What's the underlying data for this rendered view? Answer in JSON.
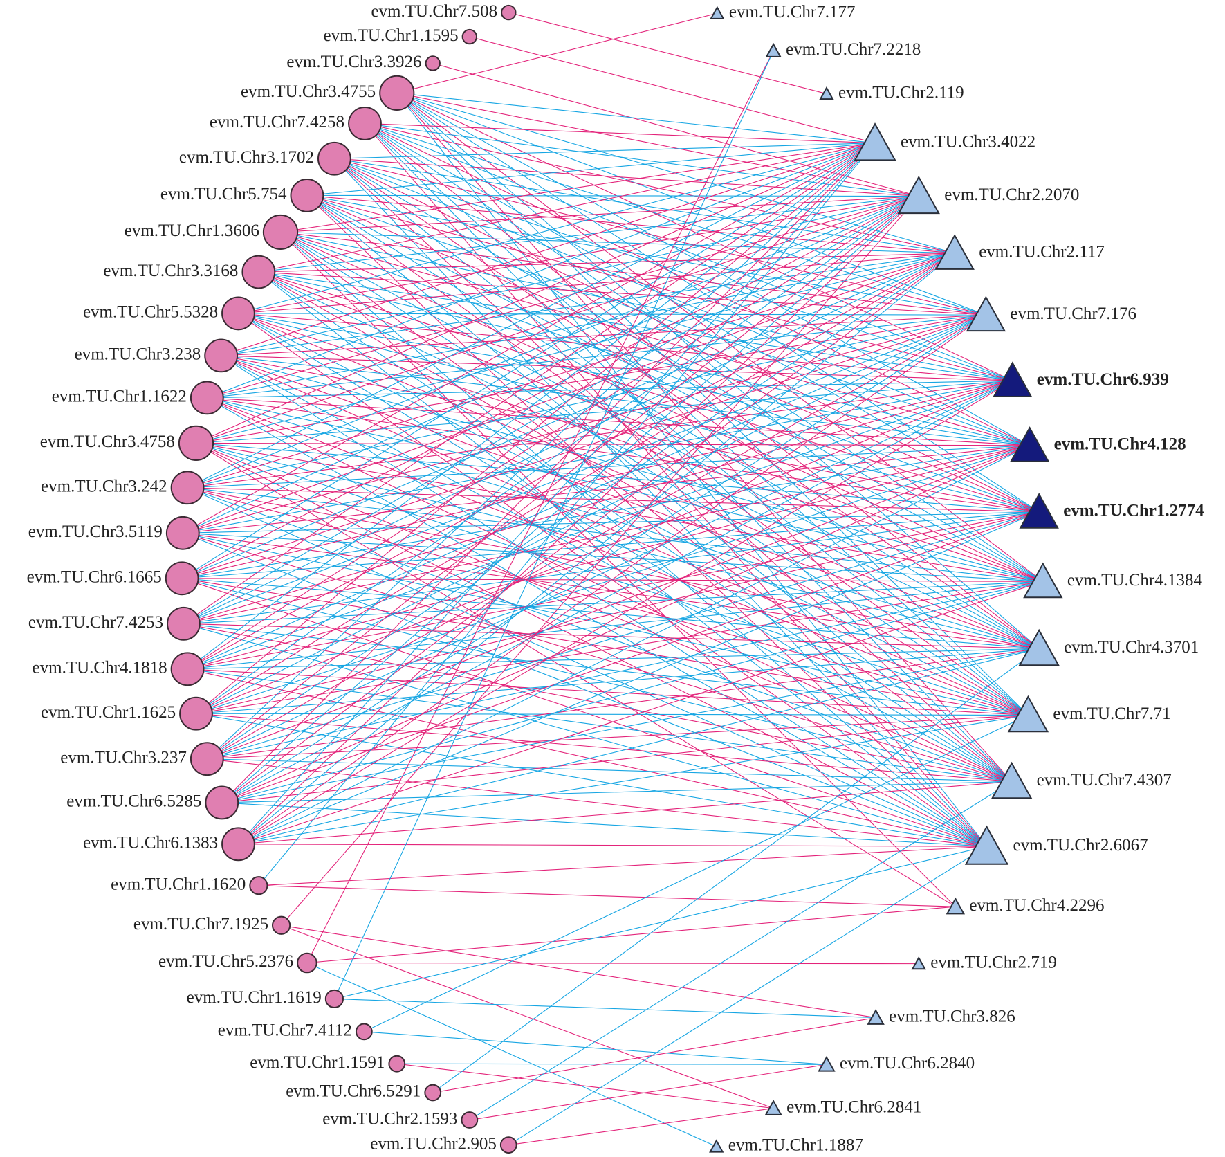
{
  "left_nodes": [
    "evm.TU.Chr7.508",
    "evm.TU.Chr1.1595",
    "evm.TU.Chr3.3926",
    "evm.TU.Chr3.4755",
    "evm.TU.Chr7.4258",
    "evm.TU.Chr3.1702",
    "evm.TU.Chr5.754",
    "evm.TU.Chr1.3606",
    "evm.TU.Chr3.3168",
    "evm.TU.Chr5.5328",
    "evm.TU.Chr3.238",
    "evm.TU.Chr1.1622",
    "evm.TU.Chr3.4758",
    "evm.TU.Chr3.242",
    "evm.TU.Chr3.5119",
    "evm.TU.Chr6.1665",
    "evm.TU.Chr7.4253",
    "evm.TU.Chr4.1818",
    "evm.TU.Chr1.1625",
    "evm.TU.Chr3.237",
    "evm.TU.Chr6.5285",
    "evm.TU.Chr6.1383",
    "evm.TU.Chr1.1620",
    "evm.TU.Chr7.1925",
    "evm.TU.Chr5.2376",
    "evm.TU.Chr1.1619",
    "evm.TU.Chr7.4112",
    "evm.TU.Chr1.1591",
    "evm.TU.Chr6.5291",
    "evm.TU.Chr2.1593",
    "evm.TU.Chr2.905"
  ],
  "right_nodes": [
    "evm.TU.Chr7.177",
    "evm.TU.Chr7.2218",
    "evm.TU.Chr2.119",
    "evm.TU.Chr3.4022",
    "evm.TU.Chr2.2070",
    "evm.TU.Chr2.117",
    "evm.TU.Chr7.176",
    "evm.TU.Chr6.939",
    "evm.TU.Chr4.128",
    "evm.TU.Chr1.2774",
    "evm.TU.Chr4.1384",
    "evm.TU.Chr4.3701",
    "evm.TU.Chr7.71",
    "evm.TU.Chr7.4307",
    "evm.TU.Chr2.6067",
    "evm.TU.Chr4.2296",
    "evm.TU.Chr2.719",
    "evm.TU.Chr3.826",
    "evm.TU.Chr6.2840",
    "evm.TU.Chr6.2841",
    "evm.TU.Chr1.1887"
  ],
  "highlighted_right": [
    7,
    8,
    9
  ],
  "colors": {
    "left": "#e07fb1",
    "right": "#a3c3e7",
    "highlight": "#141a7c",
    "edge": [
      "#e3237a",
      "#17a6e3"
    ]
  },
  "adjacency": [
    [
      0,
      0,
      1,
      0,
      0,
      0,
      0,
      0,
      0,
      0,
      0,
      0,
      0,
      0,
      0,
      0,
      0,
      0,
      0,
      0,
      0
    ],
    [
      0,
      0,
      0,
      1,
      0,
      0,
      0,
      0,
      0,
      0,
      0,
      0,
      0,
      0,
      0,
      0,
      0,
      0,
      0,
      0,
      0
    ],
    [
      0,
      0,
      0,
      0,
      1,
      0,
      0,
      0,
      0,
      0,
      0,
      0,
      0,
      0,
      0,
      0,
      0,
      0,
      0,
      0,
      0
    ],
    [
      1,
      0,
      0,
      2,
      1,
      2,
      2,
      1,
      2,
      2,
      1,
      2,
      2,
      1,
      2,
      0,
      0,
      0,
      0,
      0,
      0
    ],
    [
      0,
      0,
      0,
      1,
      2,
      1,
      2,
      2,
      1,
      2,
      2,
      1,
      2,
      2,
      1,
      0,
      0,
      0,
      0,
      0,
      0
    ],
    [
      0,
      0,
      0,
      2,
      1,
      2,
      1,
      2,
      2,
      1,
      2,
      1,
      2,
      1,
      2,
      0,
      0,
      0,
      0,
      0,
      0
    ],
    [
      0,
      0,
      0,
      2,
      2,
      1,
      2,
      1,
      2,
      1,
      2,
      2,
      1,
      2,
      1,
      0,
      0,
      0,
      0,
      0,
      0
    ],
    [
      0,
      0,
      0,
      1,
      1,
      2,
      1,
      2,
      1,
      2,
      1,
      2,
      2,
      1,
      2,
      1,
      0,
      0,
      0,
      0,
      0
    ],
    [
      0,
      0,
      0,
      1,
      2,
      1,
      1,
      2,
      2,
      1,
      1,
      2,
      1,
      2,
      2,
      0,
      0,
      0,
      0,
      0,
      0
    ],
    [
      0,
      0,
      0,
      2,
      1,
      1,
      2,
      1,
      2,
      2,
      1,
      1,
      2,
      2,
      1,
      0,
      0,
      0,
      0,
      0,
      0
    ],
    [
      0,
      0,
      0,
      1,
      2,
      2,
      1,
      1,
      2,
      1,
      2,
      1,
      1,
      2,
      2,
      0,
      0,
      0,
      0,
      0,
      0
    ],
    [
      0,
      0,
      0,
      2,
      1,
      2,
      2,
      2,
      1,
      1,
      2,
      2,
      1,
      1,
      2,
      0,
      0,
      0,
      0,
      0,
      0
    ],
    [
      0,
      0,
      0,
      1,
      1,
      2,
      1,
      2,
      1,
      2,
      1,
      2,
      2,
      1,
      1,
      1,
      0,
      0,
      0,
      0,
      0
    ],
    [
      0,
      0,
      0,
      2,
      2,
      1,
      2,
      1,
      2,
      1,
      2,
      1,
      1,
      2,
      2,
      0,
      0,
      0,
      0,
      0,
      0
    ],
    [
      0,
      0,
      0,
      1,
      2,
      1,
      1,
      2,
      1,
      2,
      2,
      1,
      2,
      1,
      2,
      0,
      0,
      0,
      0,
      0,
      0
    ],
    [
      0,
      0,
      0,
      2,
      1,
      2,
      1,
      1,
      2,
      2,
      1,
      2,
      1,
      2,
      1,
      0,
      0,
      0,
      0,
      0,
      0
    ],
    [
      0,
      0,
      0,
      1,
      2,
      2,
      2,
      1,
      1,
      2,
      2,
      1,
      2,
      1,
      2,
      0,
      0,
      0,
      0,
      0,
      0
    ],
    [
      0,
      0,
      0,
      2,
      1,
      1,
      2,
      2,
      1,
      1,
      2,
      2,
      1,
      2,
      1,
      0,
      0,
      0,
      0,
      0,
      0
    ],
    [
      0,
      0,
      0,
      1,
      2,
      1,
      2,
      1,
      2,
      1,
      1,
      2,
      2,
      1,
      2,
      0,
      0,
      0,
      0,
      0,
      0
    ],
    [
      0,
      0,
      0,
      2,
      1,
      2,
      1,
      2,
      1,
      2,
      2,
      1,
      1,
      2,
      1,
      0,
      0,
      0,
      0,
      0,
      0
    ],
    [
      0,
      0,
      0,
      1,
      2,
      1,
      2,
      2,
      1,
      1,
      2,
      2,
      1,
      2,
      2,
      0,
      0,
      0,
      0,
      0,
      0
    ],
    [
      0,
      0,
      0,
      2,
      1,
      2,
      1,
      1,
      2,
      2,
      1,
      2,
      2,
      1,
      1,
      0,
      0,
      0,
      0,
      0,
      0
    ],
    [
      0,
      0,
      0,
      2,
      0,
      0,
      0,
      0,
      0,
      0,
      0,
      0,
      0,
      0,
      1,
      1,
      0,
      0,
      0,
      0,
      0
    ],
    [
      0,
      0,
      0,
      0,
      1,
      0,
      0,
      0,
      0,
      0,
      0,
      0,
      0,
      0,
      0,
      0,
      0,
      1,
      0,
      1,
      0
    ],
    [
      0,
      1,
      0,
      0,
      0,
      0,
      0,
      0,
      0,
      0,
      0,
      0,
      0,
      0,
      0,
      1,
      1,
      0,
      0,
      0,
      2
    ],
    [
      0,
      2,
      0,
      0,
      0,
      0,
      0,
      0,
      0,
      0,
      0,
      0,
      0,
      0,
      2,
      0,
      0,
      2,
      0,
      0,
      0
    ],
    [
      0,
      0,
      0,
      0,
      0,
      0,
      0,
      0,
      0,
      0,
      0,
      0,
      2,
      0,
      0,
      0,
      0,
      0,
      2,
      0,
      0
    ],
    [
      0,
      0,
      0,
      0,
      0,
      0,
      0,
      0,
      0,
      0,
      0,
      0,
      0,
      0,
      0,
      0,
      0,
      0,
      2,
      1,
      0
    ],
    [
      0,
      0,
      0,
      0,
      0,
      0,
      0,
      0,
      0,
      0,
      0,
      2,
      0,
      0,
      0,
      0,
      0,
      1,
      0,
      0,
      0
    ],
    [
      0,
      0,
      0,
      0,
      0,
      0,
      0,
      0,
      0,
      0,
      0,
      0,
      0,
      2,
      0,
      0,
      0,
      0,
      1,
      0,
      0
    ],
    [
      0,
      0,
      0,
      0,
      0,
      0,
      0,
      0,
      0,
      0,
      0,
      0,
      0,
      0,
      2,
      0,
      0,
      0,
      0,
      1,
      0
    ]
  ]
}
